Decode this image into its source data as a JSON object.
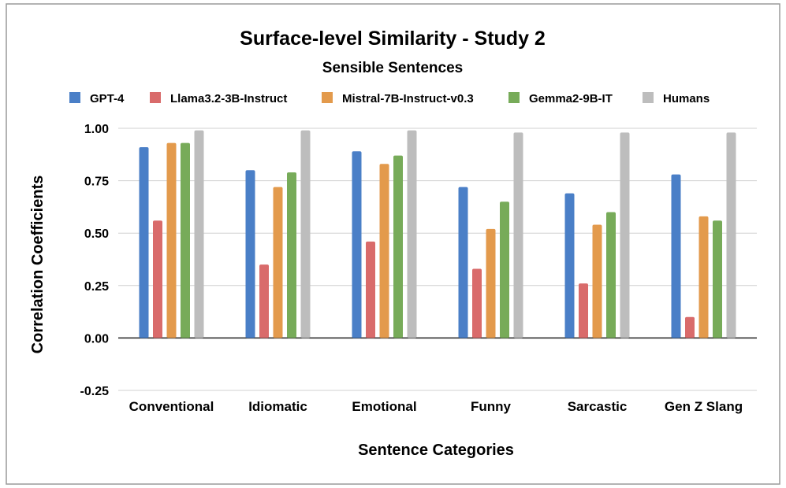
{
  "chart_data": {
    "type": "bar",
    "title": "Surface-level Similarity - Study 2",
    "subtitle": "Sensible Sentences",
    "xlabel": "Sentence Categories",
    "ylabel": "Correlation Coefficients",
    "ylim": [
      -0.25,
      1.0
    ],
    "yticks": [
      1.0,
      0.75,
      0.5,
      0.25,
      0.0,
      -0.25
    ],
    "ytick_labels": [
      "1.00",
      "0.75",
      "0.50",
      "0.25",
      "0.00",
      "-0.25"
    ],
    "grid": true,
    "legend_position": "top",
    "categories": [
      "Conventional",
      "Idiomatic",
      "Emotional",
      "Funny",
      "Sarcastic",
      "Gen Z Slang"
    ],
    "series": [
      {
        "name": "GPT-4",
        "color": "#4a7fc7",
        "values": [
          0.91,
          0.8,
          0.89,
          0.72,
          0.69,
          0.78
        ]
      },
      {
        "name": "Llama3.2-3B-Instruct",
        "color": "#d96b6b",
        "values": [
          0.56,
          0.35,
          0.46,
          0.33,
          0.26,
          0.1
        ]
      },
      {
        "name": "Mistral-7B-Instruct-v0.3",
        "color": "#e39a4c",
        "values": [
          0.93,
          0.72,
          0.83,
          0.52,
          0.54,
          0.58
        ]
      },
      {
        "name": "Gemma2-9B-IT",
        "color": "#77ab59",
        "values": [
          0.93,
          0.79,
          0.87,
          0.65,
          0.6,
          0.56
        ]
      },
      {
        "name": "Humans",
        "color": "#bdbdbd",
        "values": [
          0.99,
          0.99,
          0.99,
          0.98,
          0.98,
          0.98
        ]
      }
    ]
  }
}
